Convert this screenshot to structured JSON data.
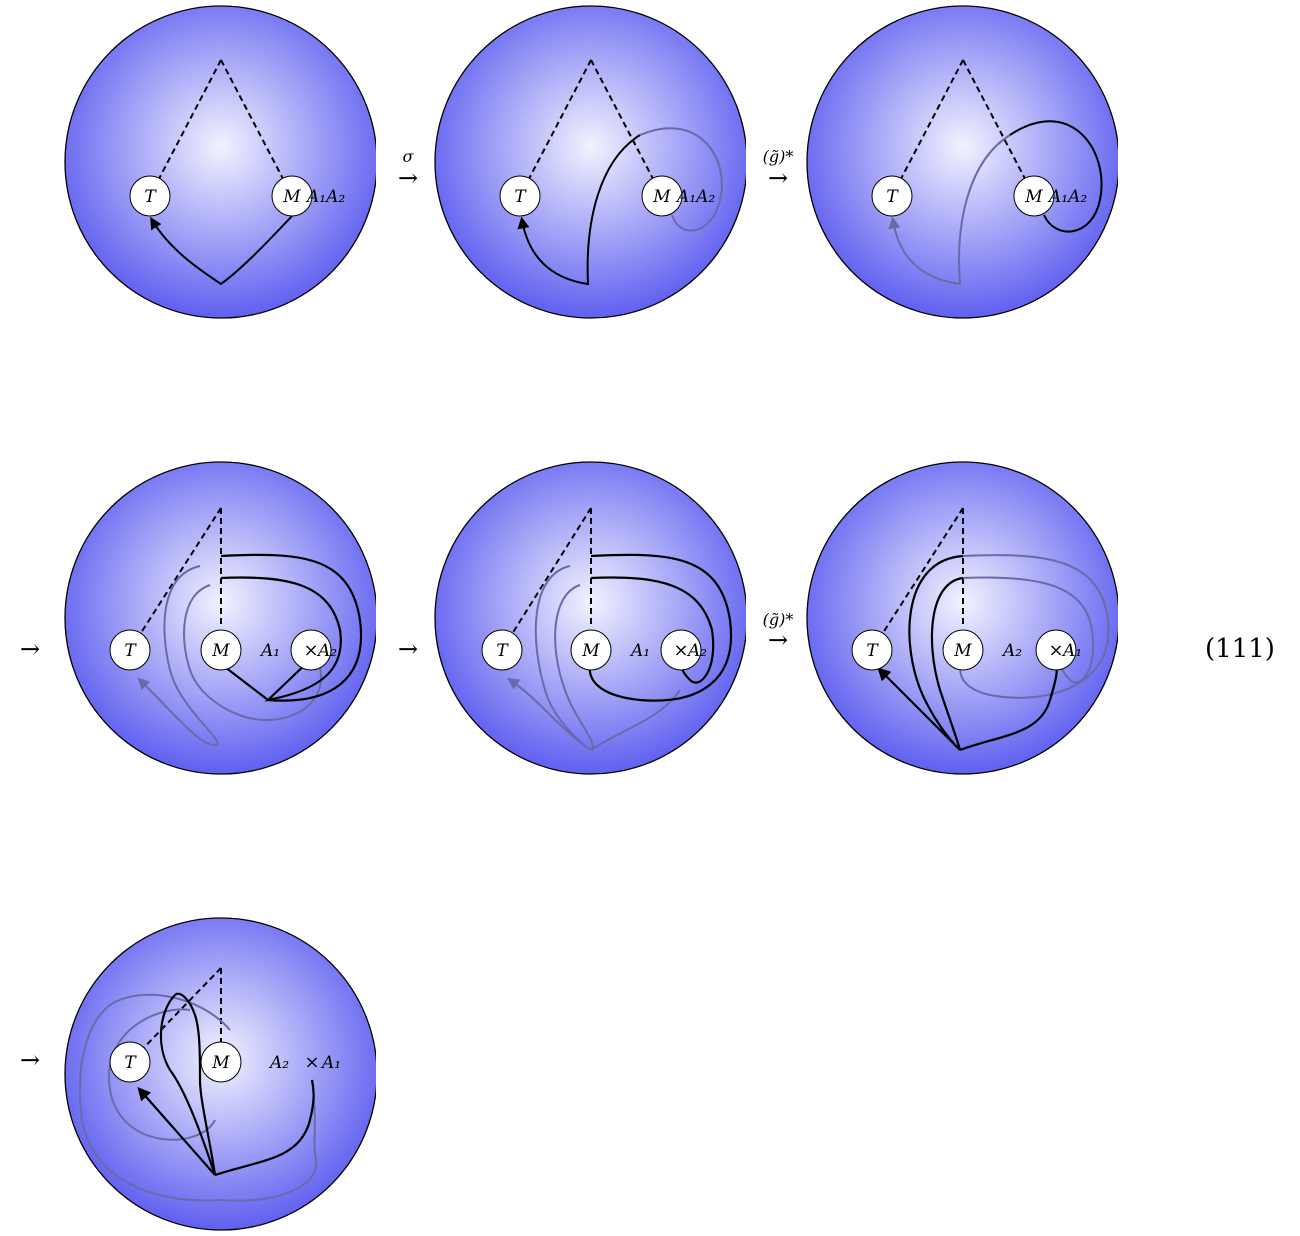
{
  "equation_number": "(111)",
  "arrows": [
    {
      "symbol": "→",
      "label": "σ"
    },
    {
      "symbol": "→",
      "label": "(g̃)*"
    },
    {
      "symbol": "→",
      "label": ""
    },
    {
      "symbol": "→",
      "label": ""
    },
    {
      "symbol": "→",
      "label": "(g̃)*"
    },
    {
      "symbol": "→",
      "label": ""
    }
  ],
  "panels": [
    {
      "node_T": "T",
      "node_M": "M",
      "tail": "A₁A₂"
    },
    {
      "node_T": "T",
      "node_M": "M",
      "tail": "A₁A₂"
    },
    {
      "node_T": "T",
      "node_M": "M",
      "tail": "A₁A₂"
    },
    {
      "node_T": "T",
      "node_M": "M",
      "pre": "A₁",
      "node_X": "×",
      "post": "A₂"
    },
    {
      "node_T": "T",
      "node_M": "M",
      "pre": "A₁",
      "node_X": "×",
      "post": "A₂"
    },
    {
      "node_T": "T",
      "node_M": "M",
      "pre": "A₂",
      "node_X": "×",
      "post": "A₁"
    },
    {
      "node_T": "T",
      "node_M": "M",
      "pre": "A₂",
      "node_X": "×",
      "post": "A₁"
    }
  ],
  "colors": {
    "disk_center": "#f2f2ff",
    "disk_edge": "#6060f0",
    "faded_curve": "#6a6aaa",
    "curve": "#000000"
  }
}
